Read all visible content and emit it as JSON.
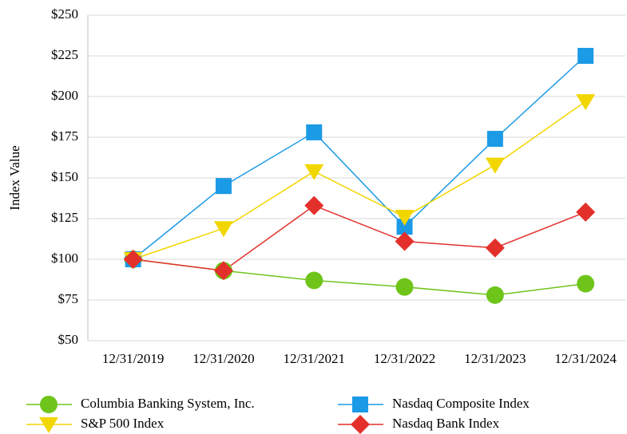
{
  "chart_data": {
    "type": "line",
    "y_label": "Index Value",
    "categories": [
      "12/31/2019",
      "12/31/2020",
      "12/31/2021",
      "12/31/2022",
      "12/31/2023",
      "12/31/2024"
    ],
    "series": [
      {
        "name": "Columbia Banking System, Inc.",
        "color": "#6fc41a",
        "marker": "circle",
        "values": [
          100,
          93,
          87,
          83,
          78,
          85
        ]
      },
      {
        "name": "Nasdaq Composite Index",
        "color": "#1b9ae6",
        "marker": "square",
        "values": [
          100,
          145,
          178,
          120,
          174,
          225
        ]
      },
      {
        "name": "S&P 500 Index",
        "color": "#f2d600",
        "marker": "triangle-down",
        "values": [
          100,
          119,
          154,
          126,
          158,
          197
        ]
      },
      {
        "name": "Nasdaq Bank Index",
        "color": "#e3302b",
        "marker": "diamond",
        "values": [
          100,
          93,
          133,
          111,
          107,
          129
        ]
      }
    ],
    "ylim": [
      50,
      250
    ],
    "yticks": [
      {
        "value": 50,
        "label": "$50"
      },
      {
        "value": 75,
        "label": "$75"
      },
      {
        "value": 100,
        "label": "$100"
      },
      {
        "value": 125,
        "label": "$125"
      },
      {
        "value": 150,
        "label": "$150"
      },
      {
        "value": 175,
        "label": "$175"
      },
      {
        "value": 200,
        "label": "$200"
      },
      {
        "value": 225,
        "label": "$225"
      },
      {
        "value": 250,
        "label": "$250"
      }
    ],
    "grid": true,
    "legend": "bottom"
  }
}
